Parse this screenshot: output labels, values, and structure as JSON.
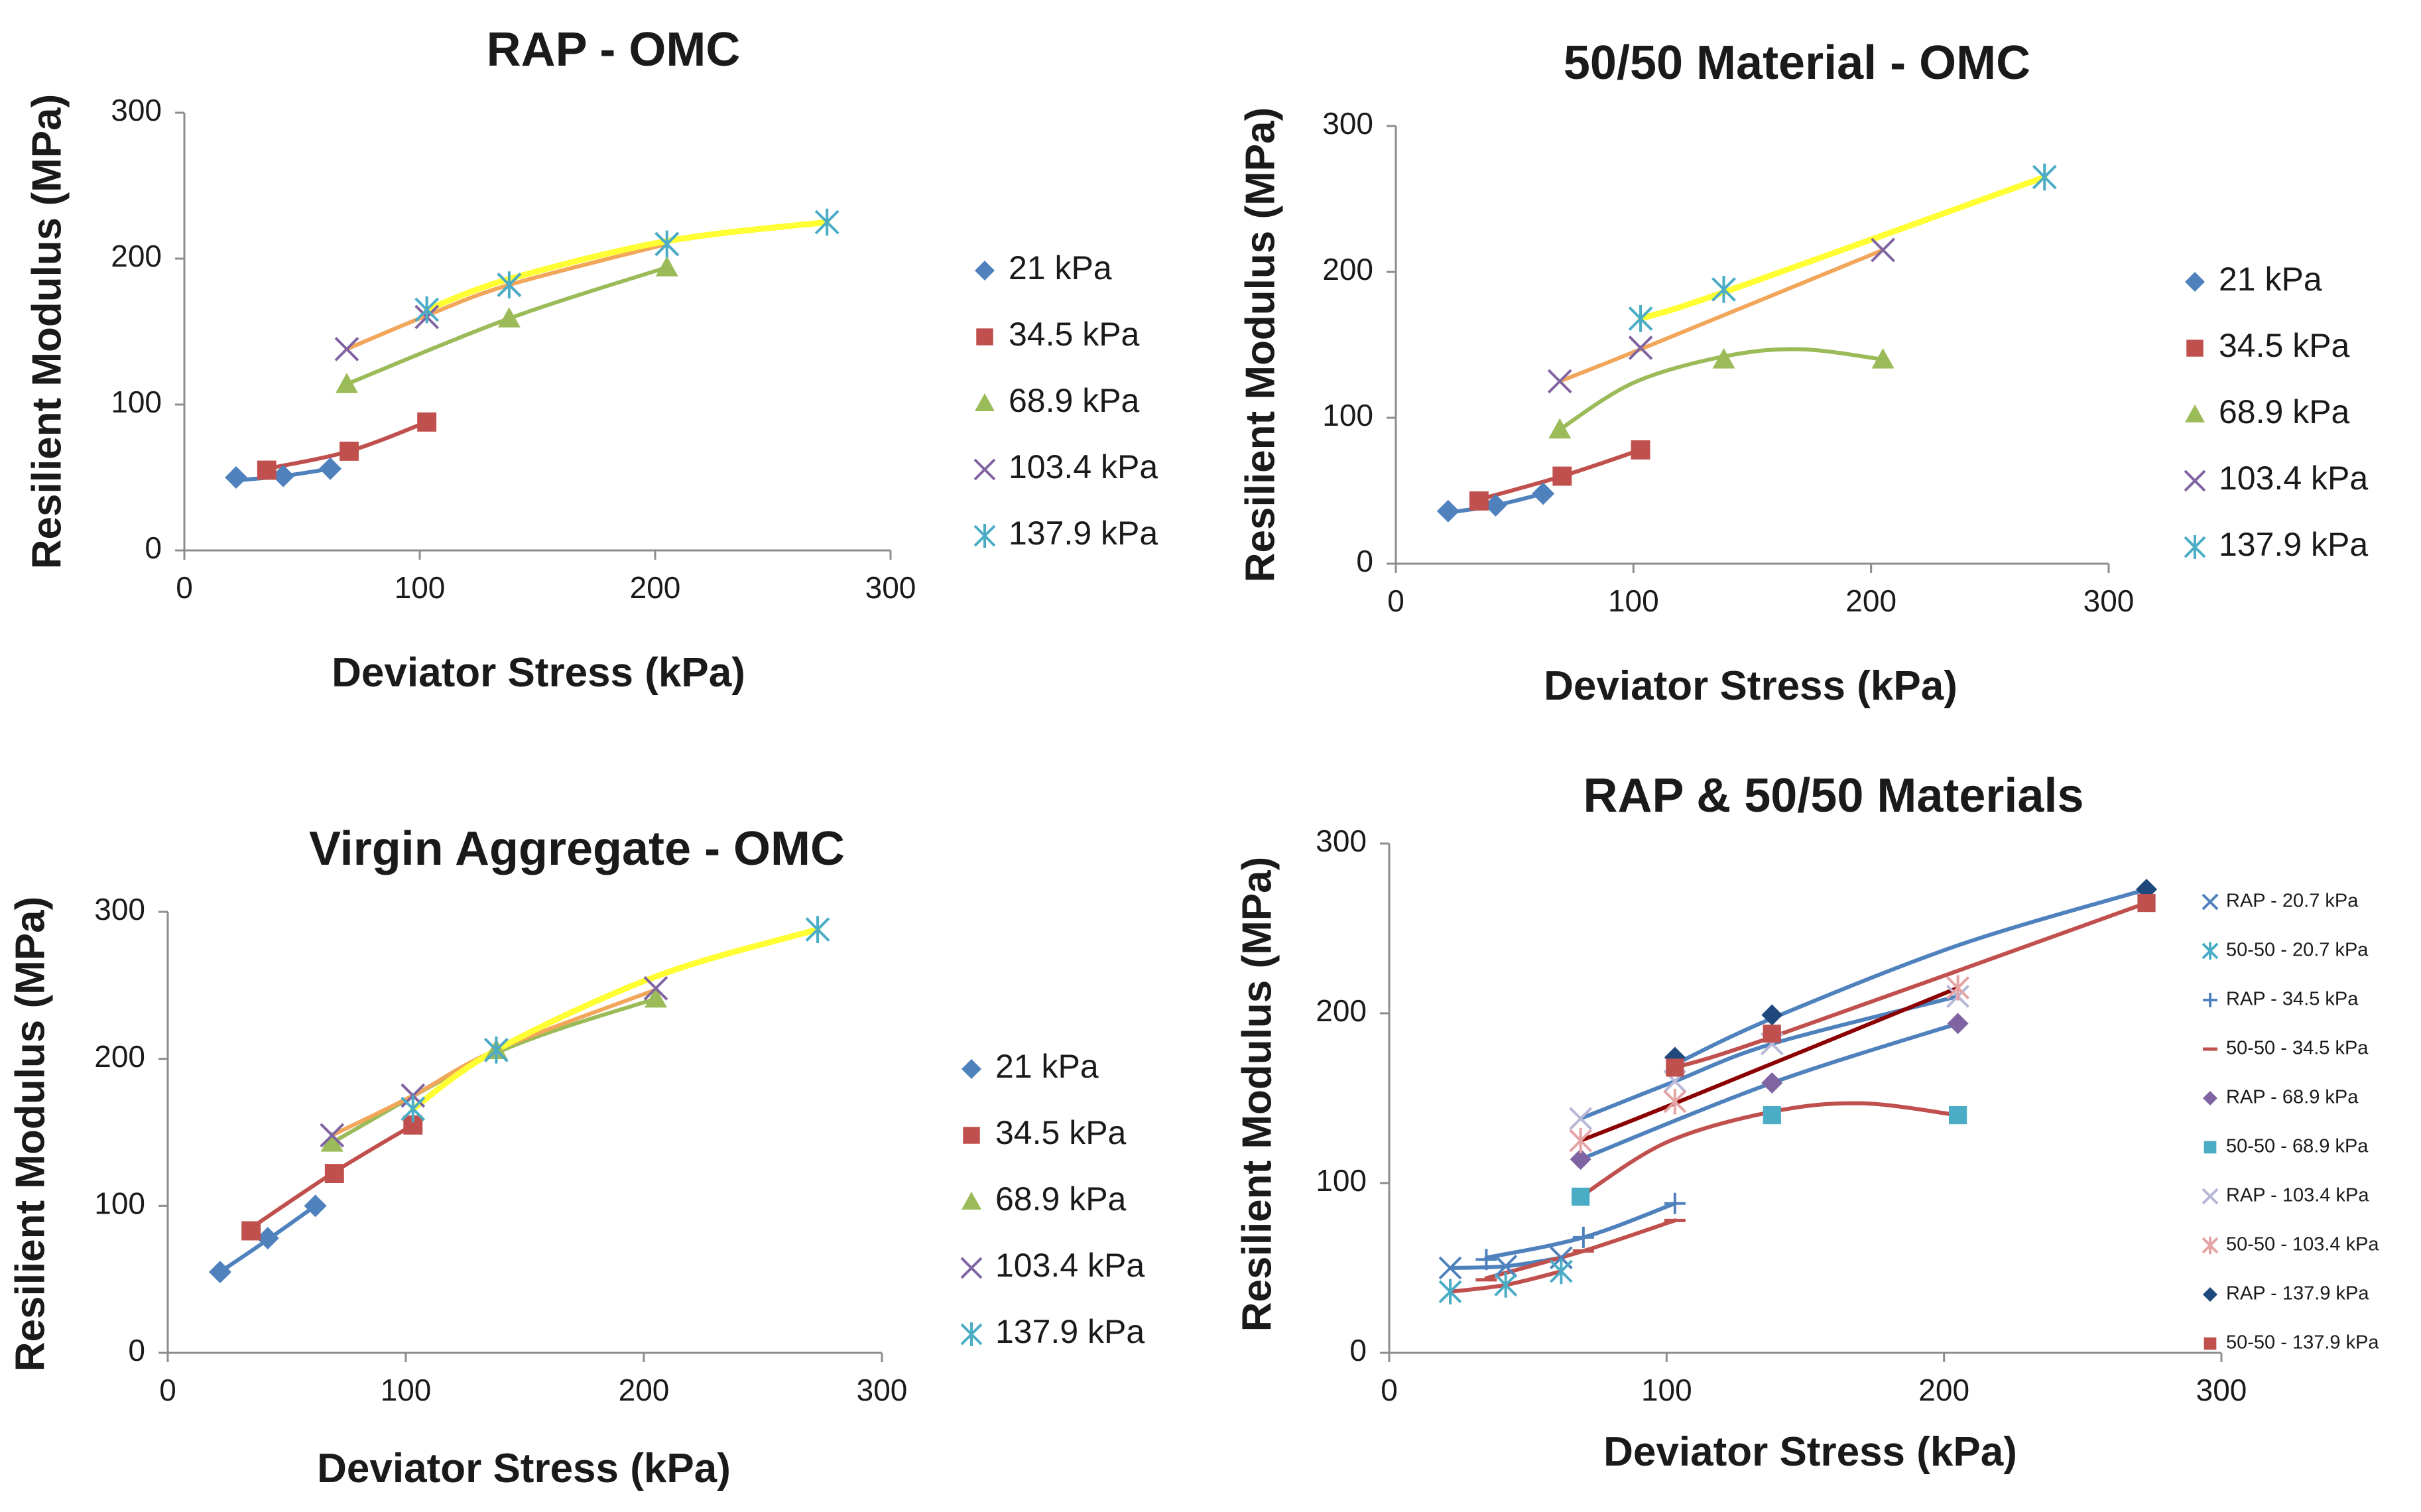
{
  "chart_data": [
    {
      "type": "line",
      "title": "RAP - OMC",
      "xlabel": "Deviator Stress (kPa)",
      "ylabel": "Resilient Modulus (MPa)",
      "xlim": [
        0,
        300
      ],
      "ylim": [
        0,
        300
      ],
      "xticks": [
        "0",
        "100",
        "200",
        "300"
      ],
      "yticks": [
        "0",
        "100",
        "200",
        "300"
      ],
      "series": [
        {
          "name": "21 kPa",
          "marker": "diamond",
          "color": "#4f81bd",
          "x": [
            22,
            42,
            62
          ],
          "y": [
            50,
            51,
            56
          ],
          "fit": [
            [
              22,
              48
            ],
            [
              42,
              51
            ],
            [
              62,
              56
            ]
          ],
          "fit_color": "#4f81bd"
        },
        {
          "name": "34.5 kPa",
          "marker": "square",
          "color": "#c0504d",
          "x": [
            35,
            70,
            103
          ],
          "y": [
            55,
            68,
            88
          ],
          "fit": [
            [
              35,
              56
            ],
            [
              70,
              68
            ],
            [
              103,
              88
            ]
          ],
          "fit_color": "#c0504d"
        },
        {
          "name": "68.9 kPa",
          "marker": "triangle",
          "color": "#9bbb59",
          "x": [
            69,
            138,
            205
          ],
          "y": [
            114,
            159,
            194
          ],
          "fit": [
            [
              69,
              114
            ],
            [
              138,
              159
            ],
            [
              205,
              194
            ]
          ],
          "fit_color": "#9bbb59"
        },
        {
          "name": "103.4 kPa",
          "marker": "x",
          "color": "#8064a2",
          "x": [
            69,
            103,
            138,
            205
          ],
          "y": [
            138,
            160,
            182,
            210
          ],
          "fit": [
            [
              69,
              138
            ],
            [
              103,
              161
            ],
            [
              138,
              182
            ],
            [
              205,
              210
            ]
          ],
          "fit_color": "#f2a65a"
        },
        {
          "name": "137.9 kPa",
          "marker": "star",
          "color": "#4bacc6",
          "x": [
            103,
            138,
            205,
            273
          ],
          "y": [
            165,
            182,
            210,
            225
          ],
          "fit": [
            [
              103,
              165
            ],
            [
              138,
              186
            ],
            [
              205,
              212
            ],
            [
              273,
              225
            ]
          ],
          "fit_color": "#ffff33"
        }
      ]
    },
    {
      "type": "line",
      "title": "50/50 Material - OMC",
      "xlabel": "Deviator Stress (kPa)",
      "ylabel": "Resilient Modulus (MPa)",
      "xlim": [
        0,
        300
      ],
      "ylim": [
        0,
        300
      ],
      "xticks": [
        "0",
        "100",
        "200",
        "300"
      ],
      "yticks": [
        "0",
        "100",
        "200",
        "300"
      ],
      "series": [
        {
          "name": "21 kPa",
          "marker": "diamond",
          "color": "#4f81bd",
          "x": [
            22,
            42,
            62
          ],
          "y": [
            36,
            40,
            48
          ],
          "fit": [
            [
              22,
              35
            ],
            [
              42,
              40
            ],
            [
              62,
              48
            ]
          ],
          "fit_color": "#4f81bd"
        },
        {
          "name": "34.5 kPa",
          "marker": "square",
          "color": "#c0504d",
          "x": [
            35,
            70,
            103
          ],
          "y": [
            43,
            60,
            78
          ],
          "fit": [
            [
              35,
              44
            ],
            [
              70,
              60
            ],
            [
              103,
              78
            ]
          ],
          "fit_color": "#c0504d"
        },
        {
          "name": "68.9 kPa",
          "marker": "triangle",
          "color": "#9bbb59",
          "x": [
            69,
            138,
            205
          ],
          "y": [
            92,
            140,
            140
          ],
          "fit": [
            [
              69,
              92
            ],
            [
              100,
              124
            ],
            [
              138,
              142
            ],
            [
              170,
              147
            ],
            [
              205,
              140
            ]
          ],
          "fit_color": "#9bbb59"
        },
        {
          "name": "103.4 kPa",
          "marker": "x",
          "color": "#8064a2",
          "x": [
            69,
            103,
            205
          ],
          "y": [
            125,
            148,
            215
          ],
          "fit": [
            [
              69,
              125
            ],
            [
              103,
              147
            ],
            [
              205,
              215
            ]
          ],
          "fit_color": "#f2a65a"
        },
        {
          "name": "137.9 kPa",
          "marker": "star",
          "color": "#4bacc6",
          "x": [
            103,
            138,
            273
          ],
          "y": [
            168,
            188,
            265
          ],
          "fit": [
            [
              103,
              168
            ],
            [
              138,
              186
            ],
            [
              273,
              265
            ]
          ],
          "fit_color": "#ffff33"
        }
      ]
    },
    {
      "type": "line",
      "title": "Virgin Aggregate - OMC",
      "xlabel": "Deviator Stress (kPa)",
      "ylabel": "Resilient Modulus (MPa)",
      "xlim": [
        0,
        300
      ],
      "ylim": [
        0,
        300
      ],
      "xticks": [
        "0",
        "100",
        "200",
        "300"
      ],
      "yticks": [
        "0",
        "100",
        "200",
        "300"
      ],
      "series": [
        {
          "name": "21 kPa",
          "marker": "diamond",
          "color": "#4f81bd",
          "x": [
            22,
            42,
            62
          ],
          "y": [
            55,
            78,
            100
          ],
          "fit": [
            [
              22,
              55
            ],
            [
              42,
              77
            ],
            [
              62,
              100
            ]
          ],
          "fit_color": "#4f81bd"
        },
        {
          "name": "34.5 kPa",
          "marker": "square",
          "color": "#c0504d",
          "x": [
            35,
            70,
            103
          ],
          "y": [
            83,
            122,
            155
          ],
          "fit": [
            [
              35,
              85
            ],
            [
              70,
              123
            ],
            [
              103,
              155
            ]
          ],
          "fit_color": "#c0504d"
        },
        {
          "name": "68.9 kPa",
          "marker": "triangle",
          "color": "#9bbb59",
          "x": [
            69,
            138,
            205
          ],
          "y": [
            143,
            206,
            241
          ],
          "fit": [
            [
              69,
              143
            ],
            [
              138,
              204
            ],
            [
              205,
              241
            ]
          ],
          "fit_color": "#9bbb59"
        },
        {
          "name": "103.4 kPa",
          "marker": "x",
          "color": "#8064a2",
          "x": [
            69,
            103,
            138,
            205
          ],
          "y": [
            148,
            175,
            206,
            248
          ],
          "fit": [
            [
              69,
              148
            ],
            [
              103,
              175
            ],
            [
              138,
              206
            ],
            [
              205,
              247
            ]
          ],
          "fit_color": "#f2a65a"
        },
        {
          "name": "137.9 kPa",
          "marker": "star",
          "color": "#4bacc6",
          "x": [
            103,
            138,
            273
          ],
          "y": [
            166,
            206,
            288
          ],
          "fit": [
            [
              103,
              166
            ],
            [
              138,
              206
            ],
            [
              205,
              256
            ],
            [
              273,
              288
            ]
          ],
          "fit_color": "#ffff33"
        }
      ]
    },
    {
      "type": "line",
      "title": "RAP & 50/50 Materials",
      "xlabel": "Deviator Stress (kPa)",
      "ylabel": "Resilient Modulus (MPa)",
      "xlim": [
        0,
        300
      ],
      "ylim": [
        0,
        300
      ],
      "xticks": [
        "0",
        "100",
        "200",
        "300"
      ],
      "yticks": [
        "0",
        "100",
        "200",
        "300"
      ],
      "series": [
        {
          "name": "RAP - 20.7 kPa",
          "marker": "x",
          "color": "#4f81bd",
          "x": [
            22,
            42,
            62
          ],
          "y": [
            50,
            51,
            56
          ],
          "fit": [
            [
              22,
              50
            ],
            [
              42,
              51
            ],
            [
              62,
              56
            ]
          ],
          "fit_color": "#4f81bd"
        },
        {
          "name": "50-50 - 20.7 kPa",
          "marker": "star",
          "color": "#4bacc6",
          "x": [
            22,
            42,
            62
          ],
          "y": [
            36,
            40,
            48
          ],
          "fit": [
            [
              22,
              36
            ],
            [
              42,
              40
            ],
            [
              62,
              48
            ]
          ],
          "fit_color": "#c0504d"
        },
        {
          "name": "RAP - 34.5 kPa",
          "marker": "plus",
          "color": "#4f81bd",
          "x": [
            35,
            70,
            103
          ],
          "y": [
            55,
            68,
            88
          ],
          "fit": [
            [
              35,
              56
            ],
            [
              70,
              68
            ],
            [
              103,
              88
            ]
          ],
          "fit_color": "#4f81bd"
        },
        {
          "name": "50-50 - 34.5 kPa",
          "marker": "dash",
          "color": "#c0504d",
          "x": [
            35,
            70,
            103
          ],
          "y": [
            43,
            60,
            78
          ],
          "fit": [
            [
              35,
              44
            ],
            [
              70,
              60
            ],
            [
              103,
              78
            ]
          ],
          "fit_color": "#c0504d"
        },
        {
          "name": "RAP - 68.9 kPa",
          "marker": "diamond",
          "color": "#8064a2",
          "x": [
            69,
            138,
            205
          ],
          "y": [
            114,
            159,
            194
          ],
          "fit": [
            [
              69,
              114
            ],
            [
              138,
              159
            ],
            [
              205,
              194
            ]
          ],
          "fit_color": "#4f81bd"
        },
        {
          "name": "50-50 - 68.9 kPa",
          "marker": "square",
          "color": "#4bacc6",
          "x": [
            69,
            138,
            205
          ],
          "y": [
            92,
            140,
            140
          ],
          "fit": [
            [
              69,
              92
            ],
            [
              100,
              124
            ],
            [
              138,
              142
            ],
            [
              170,
              147
            ],
            [
              205,
              140
            ]
          ],
          "fit_color": "#c0504d"
        },
        {
          "name": "RAP - 103.4 kPa",
          "marker": "x",
          "color": "#b7b7d7",
          "x": [
            69,
            103,
            138,
            205
          ],
          "y": [
            138,
            160,
            182,
            210
          ],
          "fit": [
            [
              69,
              138
            ],
            [
              103,
              160
            ],
            [
              138,
              182
            ],
            [
              205,
              210
            ]
          ],
          "fit_color": "#4f81bd"
        },
        {
          "name": "50-50 - 103.4 kPa",
          "marker": "star",
          "color": "#e6a3a3",
          "x": [
            69,
            103,
            205
          ],
          "y": [
            125,
            148,
            215
          ],
          "fit": [
            [
              69,
              125
            ],
            [
              103,
              147
            ],
            [
              205,
              215
            ]
          ],
          "fit_color": "#8b0000"
        },
        {
          "name": "RAP - 137.9 kPa",
          "marker": "diamond",
          "color": "#1f497d",
          "x": [
            103,
            138,
            273
          ],
          "y": [
            174,
            199,
            273
          ],
          "fit": [
            [
              103,
              170
            ],
            [
              138,
              197
            ],
            [
              205,
              240
            ],
            [
              273,
              273
            ]
          ],
          "fit_color": "#4f81bd"
        },
        {
          "name": "50-50 - 137.9 kPa",
          "marker": "square",
          "color": "#c0504d",
          "x": [
            103,
            138,
            273
          ],
          "y": [
            168,
            188,
            265
          ],
          "fit": [
            [
              103,
              168
            ],
            [
              138,
              186
            ],
            [
              273,
              265
            ]
          ],
          "fit_color": "#c0504d"
        }
      ]
    }
  ]
}
